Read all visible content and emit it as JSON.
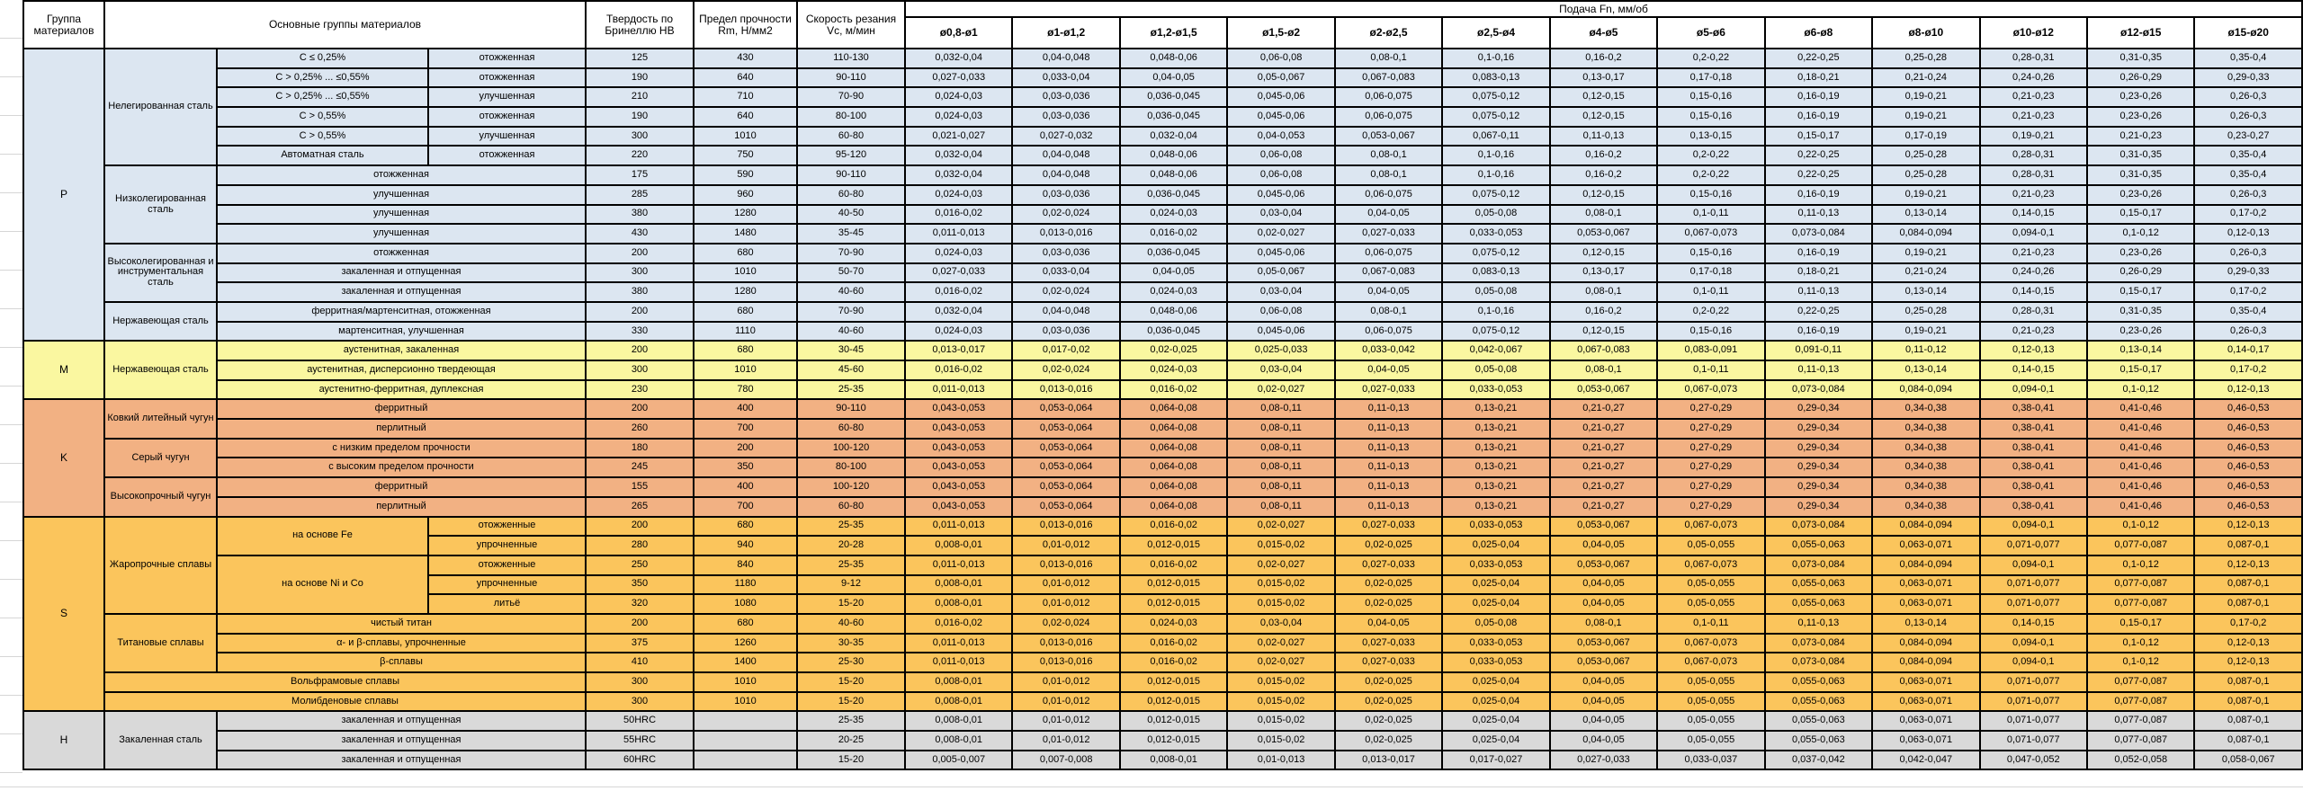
{
  "header": {
    "col_group": "Группа материалов",
    "col_main": "Основные группы материалов",
    "col_hardness": "Твердость по Бринеллю HB",
    "col_strength": "Предел прочности Rm, Н/мм2",
    "col_speed": "Скорость резания Vc, м/мин",
    "feed_title": "Подача Fn, мм/об",
    "feed_columns": [
      "ø0,8-ø1",
      "ø1-ø1,2",
      "ø1,2-ø1,5",
      "ø1,5-ø2",
      "ø2-ø2,5",
      "ø2,5-ø4",
      "ø4-ø5",
      "ø5-ø6",
      "ø6-ø8",
      "ø8-ø10",
      "ø10-ø12",
      "ø12-ø15",
      "ø15-ø20"
    ]
  },
  "feed_patterns": {
    "A": [
      "0,032-0,04",
      "0,04-0,048",
      "0,048-0,06",
      "0,06-0,08",
      "0,08-0,1",
      "0,1-0,16",
      "0,16-0,2",
      "0,2-0,22",
      "0,22-0,25",
      "0,25-0,28",
      "0,28-0,31",
      "0,31-0,35",
      "0,35-0,4"
    ],
    "B": [
      "0,027-0,033",
      "0,033-0,04",
      "0,04-0,05",
      "0,05-0,067",
      "0,067-0,083",
      "0,083-0,13",
      "0,13-0,17",
      "0,17-0,18",
      "0,18-0,21",
      "0,21-0,24",
      "0,24-0,26",
      "0,26-0,29",
      "0,29-0,33"
    ],
    "C": [
      "0,024-0,03",
      "0,03-0,036",
      "0,036-0,045",
      "0,045-0,06",
      "0,06-0,075",
      "0,075-0,12",
      "0,12-0,15",
      "0,15-0,16",
      "0,16-0,19",
      "0,19-0,21",
      "0,21-0,23",
      "0,23-0,26",
      "0,26-0,3"
    ],
    "D": [
      "0,021-0,027",
      "0,027-0,032",
      "0,032-0,04",
      "0,04-0,053",
      "0,053-0,067",
      "0,067-0,11",
      "0,11-0,13",
      "0,13-0,15",
      "0,15-0,17",
      "0,17-0,19",
      "0,19-0,21",
      "0,21-0,23",
      "0,23-0,27"
    ],
    "E": [
      "0,016-0,02",
      "0,02-0,024",
      "0,024-0,03",
      "0,03-0,04",
      "0,04-0,05",
      "0,05-0,08",
      "0,08-0,1",
      "0,1-0,11",
      "0,11-0,13",
      "0,13-0,14",
      "0,14-0,15",
      "0,15-0,17",
      "0,17-0,2"
    ],
    "F": [
      "0,011-0,013",
      "0,013-0,016",
      "0,016-0,02",
      "0,02-0,027",
      "0,027-0,033",
      "0,033-0,053",
      "0,053-0,067",
      "0,067-0,073",
      "0,073-0,084",
      "0,084-0,094",
      "0,094-0,1",
      "0,1-0,12",
      "0,12-0,13"
    ],
    "G": [
      "0,013-0,017",
      "0,017-0,02",
      "0,02-0,025",
      "0,025-0,033",
      "0,033-0,042",
      "0,042-0,067",
      "0,067-0,083",
      "0,083-0,091",
      "0,091-0,11",
      "0,11-0,12",
      "0,12-0,13",
      "0,13-0,14",
      "0,14-0,17"
    ],
    "K": [
      "0,043-0,053",
      "0,053-0,064",
      "0,064-0,08",
      "0,08-0,11",
      "0,11-0,13",
      "0,13-0,21",
      "0,21-0,27",
      "0,27-0,29",
      "0,29-0,34",
      "0,34-0,38",
      "0,38-0,41",
      "0,41-0,46",
      "0,46-0,53"
    ],
    "H": [
      "0,008-0,01",
      "0,01-0,012",
      "0,012-0,015",
      "0,015-0,02",
      "0,02-0,025",
      "0,025-0,04",
      "0,04-0,05",
      "0,05-0,055",
      "0,055-0,063",
      "0,063-0,071",
      "0,071-0,077",
      "0,077-0,087",
      "0,087-0,1"
    ],
    "I": [
      "0,005-0,007",
      "0,007-0,008",
      "0,008-0,01",
      "0,01-0,013",
      "0,013-0,017",
      "0,017-0,027",
      "0,027-0,033",
      "0,033-0,037",
      "0,037-0,042",
      "0,042-0,047",
      "0,047-0,052",
      "0,052-0,058",
      "0,058-0,067"
    ]
  },
  "groups": [
    {
      "code": "P",
      "color": "#DCE6F1",
      "rows": [
        {
          "m": [
            {
              "t": "Нелегированная сталь",
              "rs": 6
            },
            {
              "t": "C ≤ 0,25%"
            },
            {
              "t": "отожженная"
            }
          ],
          "hb": "125",
          "rm": "430",
          "vc": "110-130",
          "f": "A"
        },
        {
          "m": [
            {
              "t": "C > 0,25% ... ≤0,55%"
            },
            {
              "t": "отожженная"
            }
          ],
          "hb": "190",
          "rm": "640",
          "vc": "90-110",
          "f": "B"
        },
        {
          "m": [
            {
              "t": "C > 0,25% ... ≤0,55%"
            },
            {
              "t": "улучшенная"
            }
          ],
          "hb": "210",
          "rm": "710",
          "vc": "70-90",
          "f": "C"
        },
        {
          "m": [
            {
              "t": "C > 0,55%"
            },
            {
              "t": "отожженная"
            }
          ],
          "hb": "190",
          "rm": "640",
          "vc": "80-100",
          "f": "C"
        },
        {
          "m": [
            {
              "t": "C > 0,55%"
            },
            {
              "t": "улучшенная"
            }
          ],
          "hb": "300",
          "rm": "1010",
          "vc": "60-80",
          "f": "D"
        },
        {
          "m": [
            {
              "t": "Автоматная сталь"
            },
            {
              "t": "отожженная"
            }
          ],
          "hb": "220",
          "rm": "750",
          "vc": "95-120",
          "f": "A"
        },
        {
          "m": [
            {
              "t": "Низколегированная сталь",
              "rs": 4
            },
            {
              "t": "отожженная",
              "cs": 2
            }
          ],
          "hb": "175",
          "rm": "590",
          "vc": "90-110",
          "f": "A"
        },
        {
          "m": [
            {
              "t": "улучшенная",
              "cs": 2
            }
          ],
          "hb": "285",
          "rm": "960",
          "vc": "60-80",
          "f": "C"
        },
        {
          "m": [
            {
              "t": "улучшенная",
              "cs": 2
            }
          ],
          "hb": "380",
          "rm": "1280",
          "vc": "40-50",
          "f": "E"
        },
        {
          "m": [
            {
              "t": "улучшенная",
              "cs": 2
            }
          ],
          "hb": "430",
          "rm": "1480",
          "vc": "35-45",
          "f": "F"
        },
        {
          "m": [
            {
              "t": "Высоколегированная и инструментальная сталь",
              "rs": 3
            },
            {
              "t": "отожженная",
              "cs": 2
            }
          ],
          "hb": "200",
          "rm": "680",
          "vc": "70-90",
          "f": "C"
        },
        {
          "m": [
            {
              "t": "закаленная и отпущенная",
              "cs": 2
            }
          ],
          "hb": "300",
          "rm": "1010",
          "vc": "50-70",
          "f": "B"
        },
        {
          "m": [
            {
              "t": "закаленная и отпущенная",
              "cs": 2
            }
          ],
          "hb": "380",
          "rm": "1280",
          "vc": "40-60",
          "f": "E"
        },
        {
          "m": [
            {
              "t": "Нержавеющая сталь",
              "rs": 2
            },
            {
              "t": "ферритная/мартенситная, отожженная",
              "cs": 2
            }
          ],
          "hb": "200",
          "rm": "680",
          "vc": "70-90",
          "f": "A"
        },
        {
          "m": [
            {
              "t": "мартенситная, улучшенная",
              "cs": 2
            }
          ],
          "hb": "330",
          "rm": "1110",
          "vc": "40-60",
          "f": "C"
        }
      ]
    },
    {
      "code": "M",
      "color": "#FAF7A0",
      "rows": [
        {
          "m": [
            {
              "t": "Нержавеющая сталь",
              "rs": 3
            },
            {
              "t": "аустенитная, закаленная",
              "cs": 2
            }
          ],
          "hb": "200",
          "rm": "680",
          "vc": "30-45",
          "f": "G"
        },
        {
          "m": [
            {
              "t": "аустенитная, дисперсионно твердеющая",
              "cs": 2
            }
          ],
          "hb": "300",
          "rm": "1010",
          "vc": "45-60",
          "f": "E"
        },
        {
          "m": [
            {
              "t": "аустенитно-ферритная, дуплексная",
              "cs": 2
            }
          ],
          "hb": "230",
          "rm": "780",
          "vc": "25-35",
          "f": "F"
        }
      ]
    },
    {
      "code": "K",
      "color": "#F2B183",
      "rows": [
        {
          "m": [
            {
              "t": "Ковкий литейный чугун",
              "rs": 2
            },
            {
              "t": "ферритный",
              "cs": 2
            }
          ],
          "hb": "200",
          "rm": "400",
          "vc": "90-110",
          "f": "K"
        },
        {
          "m": [
            {
              "t": "перлитный",
              "cs": 2
            }
          ],
          "hb": "260",
          "rm": "700",
          "vc": "60-80",
          "f": "K"
        },
        {
          "m": [
            {
              "t": "Серый чугун",
              "rs": 2
            },
            {
              "t": "с низким пределом прочности",
              "cs": 2
            }
          ],
          "hb": "180",
          "rm": "200",
          "vc": "100-120",
          "f": "K"
        },
        {
          "m": [
            {
              "t": "с высоким пределом прочности",
              "cs": 2
            }
          ],
          "hb": "245",
          "rm": "350",
          "vc": "80-100",
          "f": "K"
        },
        {
          "m": [
            {
              "t": "Высокопрочный чугун",
              "rs": 2
            },
            {
              "t": "ферритный",
              "cs": 2
            }
          ],
          "hb": "155",
          "rm": "400",
          "vc": "100-120",
          "f": "K"
        },
        {
          "m": [
            {
              "t": "перлитный",
              "cs": 2
            }
          ],
          "hb": "265",
          "rm": "700",
          "vc": "60-80",
          "f": "K"
        }
      ]
    },
    {
      "code": "S",
      "color": "#FBC55C",
      "rows": [
        {
          "m": [
            {
              "t": "Жаропрочные сплавы",
              "rs": 5
            },
            {
              "t": "на основе Fe",
              "rs": 2
            },
            {
              "t": "отожженные"
            }
          ],
          "hb": "200",
          "rm": "680",
          "vc": "25-35",
          "f": "F"
        },
        {
          "m": [
            {
              "t": "упрочненные"
            }
          ],
          "hb": "280",
          "rm": "940",
          "vc": "20-28",
          "f": "H"
        },
        {
          "m": [
            {
              "t": "на основе Ni и Co",
              "rs": 3
            },
            {
              "t": "отожженные"
            }
          ],
          "hb": "250",
          "rm": "840",
          "vc": "25-35",
          "f": "F"
        },
        {
          "m": [
            {
              "t": "упрочненные"
            }
          ],
          "hb": "350",
          "rm": "1180",
          "vc": "9-12",
          "f": "H"
        },
        {
          "m": [
            {
              "t": "литьё"
            }
          ],
          "hb": "320",
          "rm": "1080",
          "vc": "15-20",
          "f": "H"
        },
        {
          "m": [
            {
              "t": "Титановые сплавы",
              "rs": 3
            },
            {
              "t": "чистый титан",
              "cs": 2
            }
          ],
          "hb": "200",
          "rm": "680",
          "vc": "40-60",
          "f": "E"
        },
        {
          "m": [
            {
              "t": "α- и β-сплавы, упрочненные",
              "cs": 2
            }
          ],
          "hb": "375",
          "rm": "1260",
          "vc": "30-35",
          "f": "F"
        },
        {
          "m": [
            {
              "t": "β-сплавы",
              "cs": 2
            }
          ],
          "hb": "410",
          "rm": "1400",
          "vc": "25-30",
          "f": "F"
        },
        {
          "m": [
            {
              "t": "Вольфрамовые сплавы",
              "cs": 3
            }
          ],
          "hb": "300",
          "rm": "1010",
          "vc": "15-20",
          "f": "H"
        },
        {
          "m": [
            {
              "t": "Молибденовые сплавы",
              "cs": 3
            }
          ],
          "hb": "300",
          "rm": "1010",
          "vc": "15-20",
          "f": "H"
        }
      ]
    },
    {
      "code": "H",
      "color": "#D9D9D9",
      "rows": [
        {
          "m": [
            {
              "t": "Закаленная сталь",
              "rs": 3
            },
            {
              "t": "закаленная и отпущенная",
              "cs": 2
            }
          ],
          "hb": "50HRC",
          "rm": "",
          "vc": "25-35",
          "f": "H"
        },
        {
          "m": [
            {
              "t": "закаленная и отпущенная",
              "cs": 2
            }
          ],
          "hb": "55HRC",
          "rm": "",
          "vc": "20-25",
          "f": "H"
        },
        {
          "m": [
            {
              "t": "закаленная и отпущенная",
              "cs": 2
            }
          ],
          "hb": "60HRC",
          "rm": "",
          "vc": "15-20",
          "f": "I"
        }
      ]
    }
  ]
}
